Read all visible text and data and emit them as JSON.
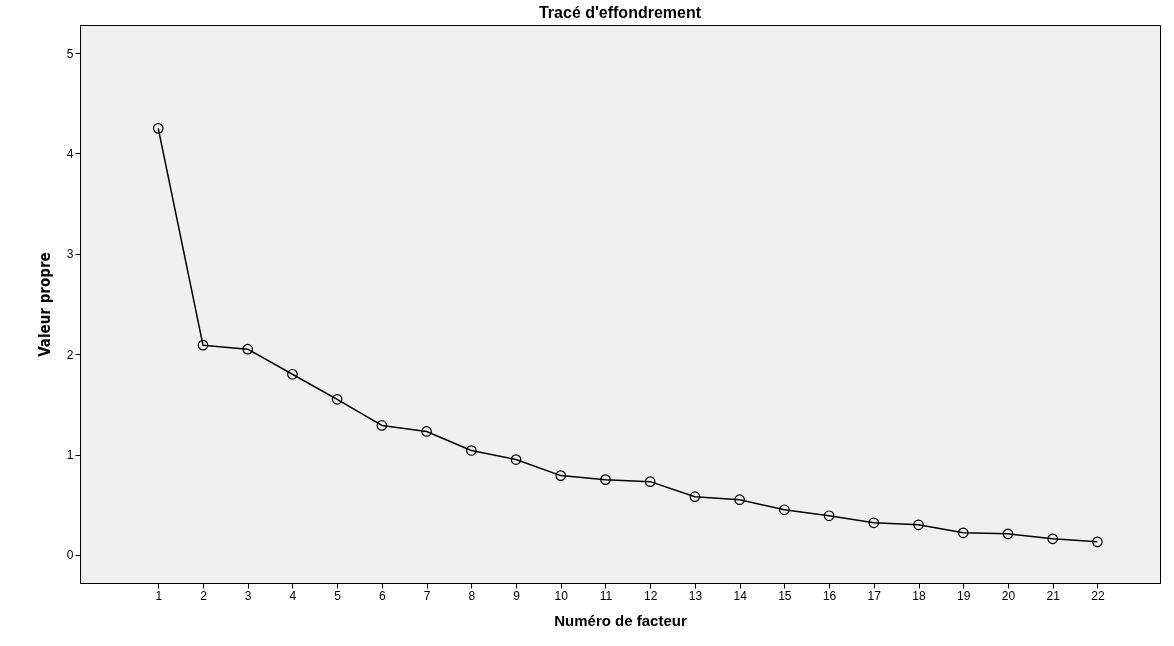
{
  "chart_data": {
    "type": "line",
    "title": "Tracé d'effondrement",
    "xlabel": "Numéro de facteur",
    "ylabel": "Valeur propre",
    "x": [
      1,
      2,
      3,
      4,
      5,
      6,
      7,
      8,
      9,
      10,
      11,
      12,
      13,
      14,
      15,
      16,
      17,
      18,
      19,
      20,
      21,
      22
    ],
    "series": [
      {
        "color": "#000000",
        "values": [
          4.25,
          2.09,
          2.05,
          1.8,
          1.55,
          1.29,
          1.23,
          1.04,
          0.95,
          0.79,
          0.75,
          0.73,
          0.58,
          0.55,
          0.45,
          0.39,
          0.32,
          0.3,
          0.22,
          0.21,
          0.16,
          0.13
        ]
      }
    ],
    "xlim": [
      -0.75,
      23.4
    ],
    "xticks": [
      1,
      2,
      3,
      4,
      5,
      6,
      7,
      8,
      9,
      10,
      11,
      12,
      13,
      14,
      15,
      16,
      17,
      18,
      19,
      20,
      21,
      22
    ],
    "ylim": [
      -0.28,
      5.28
    ],
    "yticks": [
      0,
      1,
      2,
      3,
      4,
      5
    ],
    "grid": false,
    "marker": "circle",
    "line_style": "solid"
  }
}
